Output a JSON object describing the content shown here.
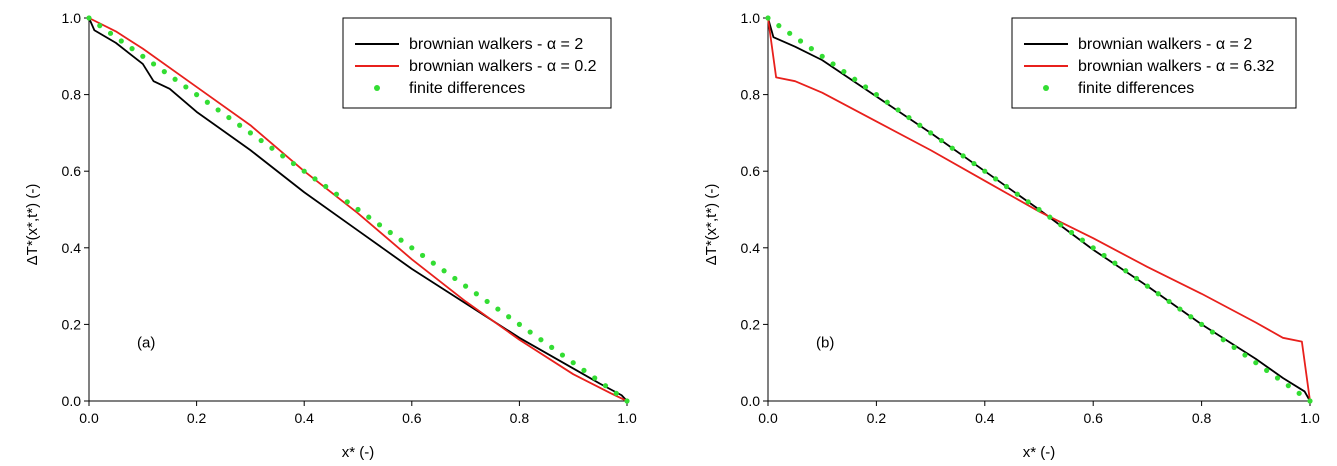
{
  "chart_data": [
    {
      "type": "line",
      "panel_label": "(a)",
      "xlabel": "x* (-)",
      "ylabel": "ΔT*(x*,t*)  (-)",
      "xlim": [
        0,
        1
      ],
      "ylim": [
        0,
        1
      ],
      "xticks": [
        "0.0",
        "0.2",
        "0.4",
        "0.6",
        "0.8",
        "1.0"
      ],
      "yticks": [
        "0.0",
        "0.2",
        "0.4",
        "0.6",
        "0.8",
        "1.0"
      ],
      "legend_position": "top-right",
      "series": [
        {
          "name": "brownian walkers - α = 2",
          "style": "line",
          "color": "#000000",
          "x": [
            0,
            0.01,
            0.05,
            0.1,
            0.12,
            0.15,
            0.2,
            0.3,
            0.4,
            0.5,
            0.6,
            0.7,
            0.8,
            0.9,
            0.95,
            0.99,
            1.0
          ],
          "y": [
            1.0,
            0.968,
            0.935,
            0.88,
            0.835,
            0.815,
            0.755,
            0.655,
            0.545,
            0.445,
            0.345,
            0.255,
            0.165,
            0.085,
            0.045,
            0.015,
            0.0
          ]
        },
        {
          "name": "brownian walkers - α = 0.2",
          "style": "line",
          "color": "#e8201c",
          "x": [
            0,
            0.05,
            0.1,
            0.2,
            0.3,
            0.4,
            0.5,
            0.6,
            0.7,
            0.8,
            0.9,
            0.97,
            1.0
          ],
          "y": [
            1.0,
            0.965,
            0.92,
            0.82,
            0.72,
            0.6,
            0.49,
            0.37,
            0.26,
            0.16,
            0.07,
            0.02,
            0.0
          ]
        },
        {
          "name": "finite differences",
          "style": "markers",
          "color": "#33dd33",
          "x": [
            0,
            0.02,
            0.04,
            0.06,
            0.08,
            0.1,
            0.12,
            0.14,
            0.16,
            0.18,
            0.2,
            0.22,
            0.24,
            0.26,
            0.28,
            0.3,
            0.32,
            0.34,
            0.36,
            0.38,
            0.4,
            0.42,
            0.44,
            0.46,
            0.48,
            0.5,
            0.52,
            0.54,
            0.56,
            0.58,
            0.6,
            0.62,
            0.64,
            0.66,
            0.68,
            0.7,
            0.72,
            0.74,
            0.76,
            0.78,
            0.8,
            0.82,
            0.84,
            0.86,
            0.88,
            0.9,
            0.92,
            0.94,
            0.96,
            0.98,
            1.0
          ],
          "y": [
            1.0,
            0.98,
            0.96,
            0.94,
            0.92,
            0.9,
            0.88,
            0.86,
            0.84,
            0.82,
            0.8,
            0.78,
            0.76,
            0.74,
            0.72,
            0.7,
            0.68,
            0.66,
            0.64,
            0.62,
            0.6,
            0.58,
            0.56,
            0.54,
            0.52,
            0.5,
            0.48,
            0.46,
            0.44,
            0.42,
            0.4,
            0.38,
            0.36,
            0.34,
            0.32,
            0.3,
            0.28,
            0.26,
            0.24,
            0.22,
            0.2,
            0.18,
            0.16,
            0.14,
            0.12,
            0.1,
            0.08,
            0.06,
            0.04,
            0.02,
            0.0
          ]
        }
      ]
    },
    {
      "type": "line",
      "panel_label": "(b)",
      "xlabel": "x* (-)",
      "ylabel": "ΔT*(x*,t*)  (-)",
      "xlim": [
        0,
        1
      ],
      "ylim": [
        0,
        1
      ],
      "xticks": [
        "0.0",
        "0.2",
        "0.4",
        "0.6",
        "0.8",
        "1.0"
      ],
      "yticks": [
        "0.0",
        "0.2",
        "0.4",
        "0.6",
        "0.8",
        "1.0"
      ],
      "legend_position": "top-right",
      "series": [
        {
          "name": "brownian walkers - α = 2",
          "style": "line",
          "color": "#000000",
          "x": [
            0,
            0.01,
            0.05,
            0.1,
            0.2,
            0.3,
            0.4,
            0.5,
            0.6,
            0.7,
            0.8,
            0.9,
            0.95,
            0.99,
            1.0
          ],
          "y": [
            1.0,
            0.95,
            0.925,
            0.89,
            0.795,
            0.7,
            0.6,
            0.5,
            0.395,
            0.3,
            0.2,
            0.11,
            0.06,
            0.025,
            0.0
          ]
        },
        {
          "name": "brownian walkers - α = 6.32",
          "style": "line",
          "color": "#e8201c",
          "x": [
            0,
            0.015,
            0.05,
            0.1,
            0.2,
            0.3,
            0.4,
            0.5,
            0.6,
            0.7,
            0.8,
            0.9,
            0.95,
            0.985,
            1.0
          ],
          "y": [
            1.0,
            0.845,
            0.835,
            0.805,
            0.73,
            0.655,
            0.575,
            0.495,
            0.425,
            0.35,
            0.28,
            0.205,
            0.165,
            0.155,
            0.0
          ]
        },
        {
          "name": "finite differences",
          "style": "markers",
          "color": "#33dd33",
          "x": [
            0,
            0.02,
            0.04,
            0.06,
            0.08,
            0.1,
            0.12,
            0.14,
            0.16,
            0.18,
            0.2,
            0.22,
            0.24,
            0.26,
            0.28,
            0.3,
            0.32,
            0.34,
            0.36,
            0.38,
            0.4,
            0.42,
            0.44,
            0.46,
            0.48,
            0.5,
            0.52,
            0.54,
            0.56,
            0.58,
            0.6,
            0.62,
            0.64,
            0.66,
            0.68,
            0.7,
            0.72,
            0.74,
            0.76,
            0.78,
            0.8,
            0.82,
            0.84,
            0.86,
            0.88,
            0.9,
            0.92,
            0.94,
            0.96,
            0.98,
            1.0
          ],
          "y": [
            1.0,
            0.98,
            0.96,
            0.94,
            0.92,
            0.9,
            0.88,
            0.86,
            0.84,
            0.82,
            0.8,
            0.78,
            0.76,
            0.74,
            0.72,
            0.7,
            0.68,
            0.66,
            0.64,
            0.62,
            0.6,
            0.58,
            0.56,
            0.54,
            0.52,
            0.5,
            0.48,
            0.46,
            0.44,
            0.42,
            0.4,
            0.38,
            0.36,
            0.34,
            0.32,
            0.3,
            0.28,
            0.26,
            0.24,
            0.22,
            0.2,
            0.18,
            0.16,
            0.14,
            0.12,
            0.1,
            0.08,
            0.06,
            0.04,
            0.02,
            0.0
          ]
        }
      ]
    }
  ]
}
